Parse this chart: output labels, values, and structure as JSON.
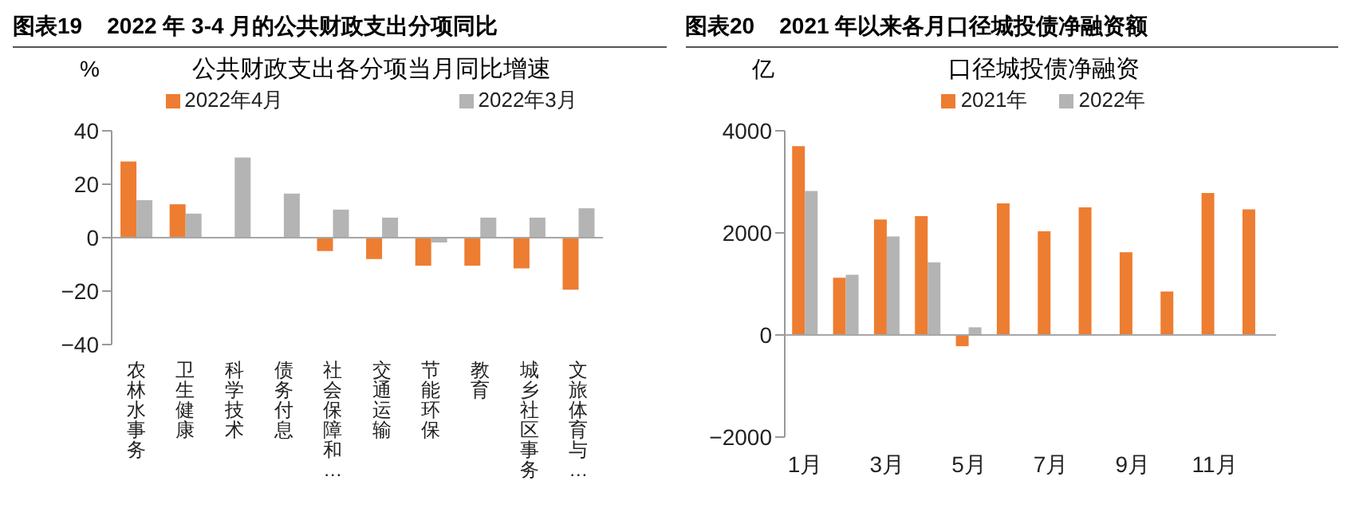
{
  "chart_data": [
    {
      "type": "bar",
      "title": "图表19    2022 年 3-4 月的公共财政支出分项同比",
      "subtitle": "公共财政支出各分项当月同比增速",
      "ylabel": "%",
      "categories": [
        "农林水事务",
        "卫生健康",
        "科学技术",
        "债务付息",
        "社会保障和…",
        "交通运输",
        "节能环保",
        "教育",
        "城乡社区事务",
        "文旅体育与…"
      ],
      "series": [
        {
          "name": "2022年4月",
          "color": "#ed7d31",
          "values": [
            28.5,
            12.5,
            0,
            0,
            -5,
            -8,
            -10.5,
            -10.5,
            -11.5,
            -19.5
          ]
        },
        {
          "name": "2022年3月",
          "color": "#b4b4b4",
          "values": [
            14,
            9,
            30,
            16.5,
            10.5,
            7.5,
            -1,
            7.5,
            7.5,
            11
          ]
        }
      ],
      "ylim": [
        -40,
        40
      ],
      "yticks": [
        40,
        20,
        0,
        {
          "value": -20,
          "label": "−20"
        },
        {
          "value": -40,
          "label": "−40"
        }
      ],
      "ref_lines": [
        {
          "axis": "y",
          "value": 0,
          "color": "#a6a6a6"
        }
      ],
      "grid": false,
      "legend": "top"
    },
    {
      "type": "bar",
      "title": "图表20    2021 年以来各月口径城投债净融资额",
      "subtitle": "口径城投债净融资",
      "ylabel": "亿",
      "categories": [
        "1月",
        null,
        "3月",
        null,
        "5月",
        null,
        "7月",
        null,
        "9月",
        null,
        "11月",
        null
      ],
      "series": [
        {
          "name": "2021年",
          "color": "#ed7d31",
          "values": [
            3700,
            1120,
            2260,
            2330,
            -220,
            2580,
            2030,
            2500,
            1620,
            850,
            2780,
            2460
          ]
        },
        {
          "name": "2022年",
          "color": "#b4b4b4",
          "values": [
            2820,
            1180,
            1930,
            1420,
            150,
            null,
            null,
            null,
            null,
            null,
            null,
            null
          ]
        }
      ],
      "ylim": [
        -2000,
        4000
      ],
      "yticks": [
        4000,
        2000,
        0,
        {
          "value": -2000,
          "label": "−2000"
        }
      ],
      "ref_lines": [
        {
          "axis": "y",
          "value": 0,
          "color": "#a6a6a6"
        }
      ],
      "grid": false,
      "legend": "top"
    }
  ]
}
